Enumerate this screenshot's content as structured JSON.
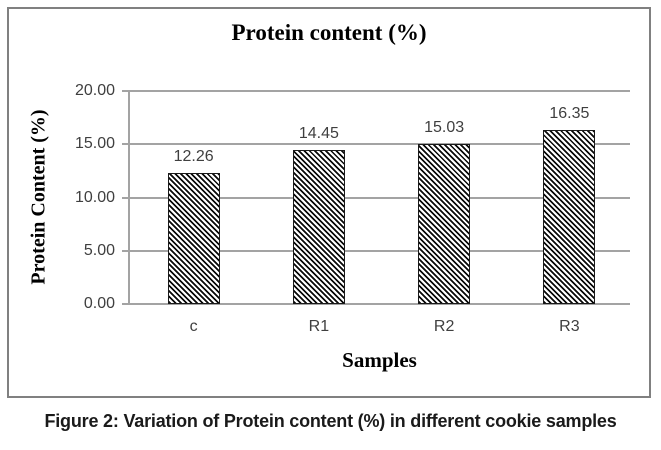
{
  "chart_data": {
    "type": "bar",
    "title": "Protein content (%)",
    "xlabel": "Samples",
    "ylabel": "Protein Content (%)",
    "categories": [
      "c",
      "R1",
      "R2",
      "R3"
    ],
    "values": [
      12.26,
      14.45,
      15.03,
      16.35
    ],
    "data_labels": [
      "12.26",
      "14.45",
      "15.03",
      "16.35"
    ],
    "ylim": [
      0,
      20
    ],
    "ytick_step": 5,
    "ytick_labels": [
      "20.00",
      "15.00",
      "10.00",
      "5.00",
      "0.00"
    ],
    "grid": true,
    "legend": "none",
    "bar_fill": "black-white diagonal hatch",
    "colors": {
      "grid": "#a3a3a3",
      "axis": "#a3a3a3",
      "frame_border": "#808080",
      "hatch": "#0a0a0a",
      "tick_text": "#3f3f3f",
      "title_text": "#000000"
    }
  },
  "caption": "Figure 2: Variation of Protein content (%) in different cookie samples"
}
